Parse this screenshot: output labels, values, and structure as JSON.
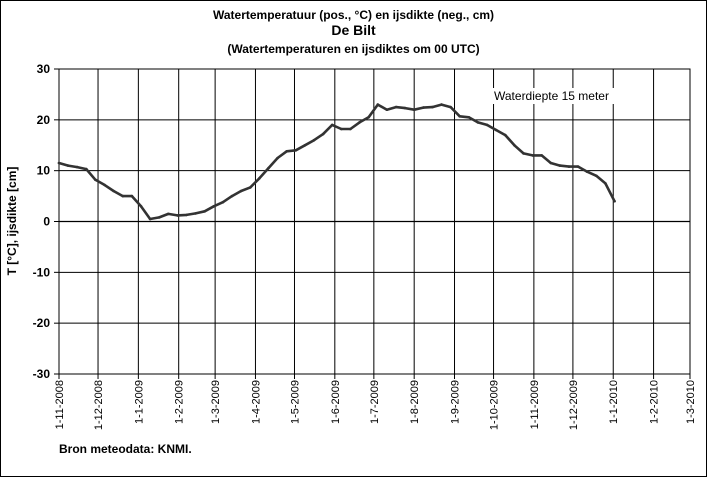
{
  "chart_data": {
    "type": "line",
    "title": "Watertemperatuur  (pos., °C) en ijsdikte (neg., cm)",
    "subtitle": "De Bilt",
    "subtitle2": "(Watertemperaturen  en ijsdiktes om 00 UTC)",
    "ylabel": "T [°C], ijsdikte [cm]",
    "xlabel": "",
    "ylim": [
      -30,
      30
    ],
    "yticks": [
      30,
      20,
      10,
      0,
      -10,
      -20,
      -30
    ],
    "xticks": [
      "1-11-2008",
      "1-12-2008",
      "1-1-2009",
      "1-2-2009",
      "1-3-2009",
      "1-4-2009",
      "1-5-2009",
      "1-6-2009",
      "1-7-2009",
      "1-8-2009",
      "1-9-2009",
      "1-10-2009",
      "1-11-2009",
      "1-12-2009",
      "1-1-2010",
      "1-2-2010",
      "1-3-2010"
    ],
    "grid": true,
    "annotation": "Waterdiepte 15 meter",
    "source": "Bron meteodata:  KNMI.",
    "series": [
      {
        "name": "",
        "color": "#333333",
        "x": [
          "1-11-2008",
          "8-11-2008",
          "15-11-2008",
          "22-11-2008",
          "29-11-2008",
          "6-12-2008",
          "13-12-2008",
          "20-12-2008",
          "27-12-2008",
          "3-1-2009",
          "10-1-2009",
          "17-1-2009",
          "24-1-2009",
          "31-1-2009",
          "7-2-2009",
          "14-2-2009",
          "21-2-2009",
          "28-2-2009",
          "7-3-2009",
          "14-3-2009",
          "21-3-2009",
          "28-3-2009",
          "4-4-2009",
          "11-4-2009",
          "18-4-2009",
          "25-4-2009",
          "2-5-2009",
          "9-5-2009",
          "16-5-2009",
          "23-5-2009",
          "30-5-2009",
          "6-6-2009",
          "13-6-2009",
          "20-6-2009",
          "27-6-2009",
          "4-7-2009",
          "11-7-2009",
          "18-7-2009",
          "25-7-2009",
          "1-8-2009",
          "8-8-2009",
          "15-8-2009",
          "22-8-2009",
          "29-8-2009",
          "5-9-2009",
          "12-9-2009",
          "19-9-2009",
          "26-9-2009",
          "3-10-2009",
          "10-10-2009",
          "17-10-2009",
          "24-10-2009",
          "31-10-2009",
          "7-11-2009",
          "14-11-2009",
          "21-11-2009",
          "28-11-2009",
          "5-12-2009",
          "12-12-2009",
          "19-12-2009",
          "26-12-2009",
          "2-1-2010"
        ],
        "values": [
          11.5,
          11.0,
          10.7,
          10.3,
          8.2,
          7.2,
          6.0,
          5.0,
          5.0,
          3.0,
          0.5,
          0.8,
          1.5,
          1.2,
          1.3,
          1.6,
          2.0,
          3.0,
          3.8,
          5.0,
          6.0,
          6.7,
          8.5,
          10.5,
          12.5,
          13.8,
          14.0,
          15.0,
          16.0,
          17.2,
          19.0,
          18.2,
          18.2,
          19.5,
          20.5,
          23.0,
          22.0,
          22.5,
          22.3,
          22.0,
          22.4,
          22.5,
          23.0,
          22.5,
          20.7,
          20.5,
          19.5,
          19.0,
          18.0,
          17.0,
          15.0,
          13.4,
          13.0,
          13.0,
          11.5,
          11.0,
          10.8,
          10.8,
          9.8,
          9.0,
          7.5,
          4.0
        ]
      }
    ]
  }
}
